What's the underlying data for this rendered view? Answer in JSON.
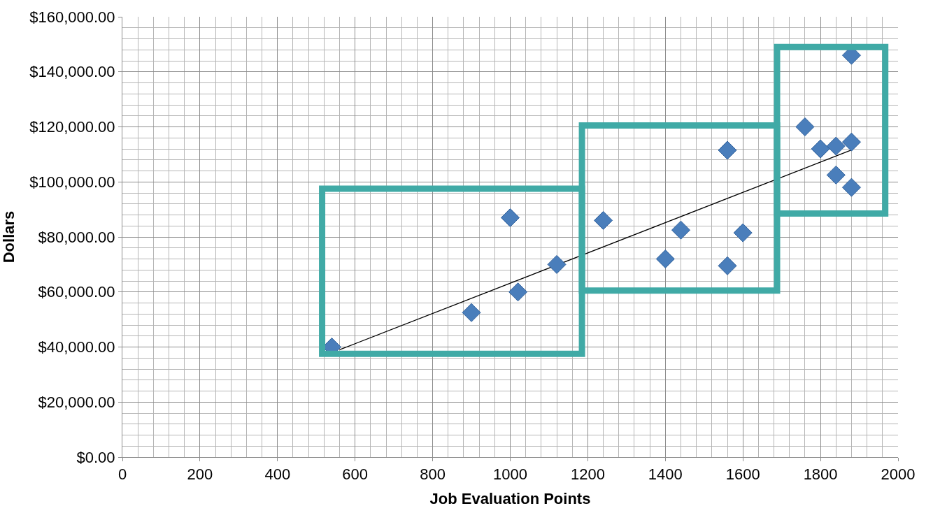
{
  "chart_data": {
    "type": "scatter",
    "xlabel": "Job Evaluation Points",
    "ylabel": "Dollars",
    "xlim": [
      0,
      2000
    ],
    "xticks": [
      0,
      200,
      400,
      600,
      800,
      1000,
      1200,
      1400,
      1600,
      1800,
      2000
    ],
    "ylim": [
      0,
      160000
    ],
    "yticks": [
      {
        "value": 0,
        "label": "$0.00"
      },
      {
        "value": 20000,
        "label": "$20,000.00"
      },
      {
        "value": 40000,
        "label": "$40,000.00"
      },
      {
        "value": 60000,
        "label": "$60,000.00"
      },
      {
        "value": 80000,
        "label": "$80,000.00"
      },
      {
        "value": 100000,
        "label": "$100,000.00"
      },
      {
        "value": 120000,
        "label": "$120,000.00"
      },
      {
        "value": 140000,
        "label": "$140,000.00"
      },
      {
        "value": 160000,
        "label": "$160,000.00"
      }
    ],
    "grid": true,
    "series": [
      {
        "type": "line",
        "color": "#000000",
        "marker": "none",
        "x": [
          560,
          1882
        ],
        "values": [
          39000,
          111700
        ]
      },
      {
        "color": "#4a7ebb",
        "marker": "diamond",
        "x": [
          540,
          900,
          1000,
          1020,
          1120,
          1240,
          1400,
          1440,
          1560,
          1560,
          1600,
          1760,
          1800,
          1840,
          1840,
          1880,
          1880,
          1880
        ],
        "values": [
          40000,
          52500,
          87000,
          60000,
          70000,
          86000,
          72000,
          82500,
          111500,
          69500,
          81500,
          120000,
          112000,
          113000,
          102500,
          114500,
          98000,
          146000
        ]
      }
    ]
  }
}
